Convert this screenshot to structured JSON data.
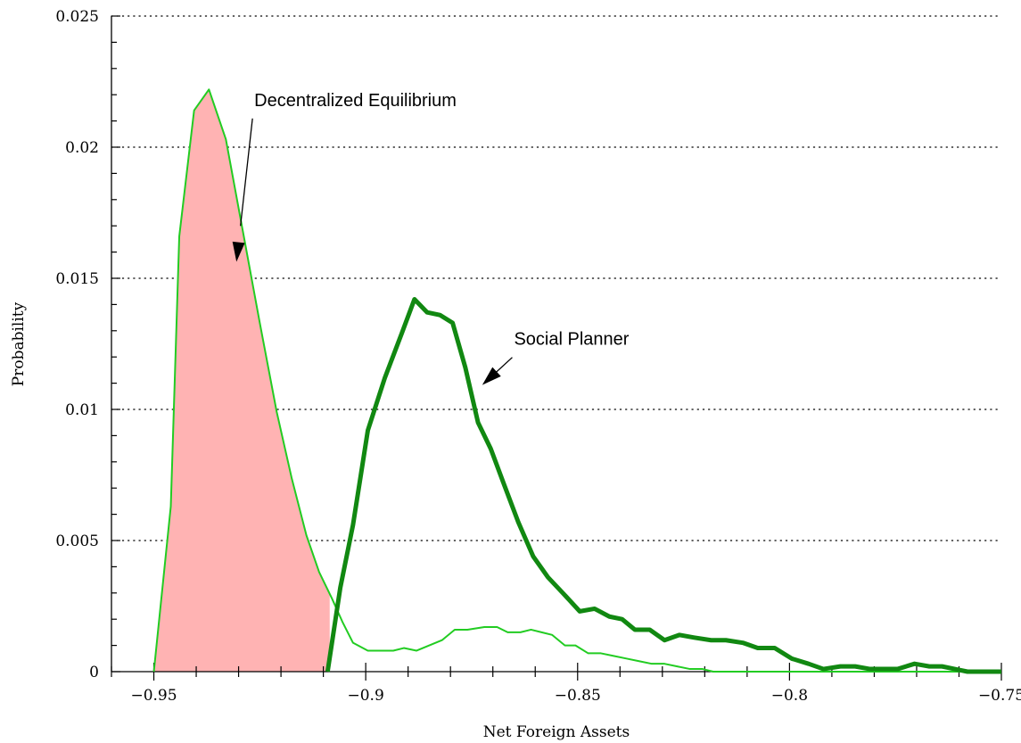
{
  "chart_data": {
    "type": "line",
    "title": "",
    "xlabel": "Net Foreign Assets",
    "ylabel": "Probability",
    "xlim": [
      -0.96,
      -0.75
    ],
    "ylim": [
      0,
      0.025
    ],
    "x_ticks": [
      -0.95,
      -0.9,
      -0.85,
      -0.8,
      -0.75
    ],
    "x_tick_labels": [
      "−0.95",
      "−0.9",
      "−0.85",
      "−0.8",
      "−0.75"
    ],
    "y_ticks": [
      0,
      0.005,
      0.01,
      0.015,
      0.02,
      0.025
    ],
    "y_tick_labels": [
      "0",
      "0.005",
      "0.01",
      "0.015",
      "0.02",
      "0.025"
    ],
    "grid": "horizontal-dotted",
    "legend": "none",
    "series": [
      {
        "color": "#22cc22",
        "x": [
          -0.95,
          -0.946,
          -0.944,
          -0.9405,
          -0.937,
          -0.933,
          -0.929,
          -0.925,
          -0.921,
          -0.9175,
          -0.914,
          -0.911,
          -0.908,
          -0.9055,
          -0.903,
          -0.8995,
          -0.896,
          -0.8935,
          -0.891,
          -0.888,
          -0.885,
          -0.882,
          -0.879,
          -0.876,
          -0.872,
          -0.869,
          -0.8665,
          -0.8635,
          -0.861,
          -0.8585,
          -0.856,
          -0.853,
          -0.8505,
          -0.8475,
          -0.8445,
          -0.8415,
          -0.8385,
          -0.8355,
          -0.8325,
          -0.8295,
          -0.8265,
          -0.8235,
          -0.8205,
          -0.818,
          -0.81,
          -0.8,
          -0.79,
          -0.78,
          -0.77,
          -0.76,
          -0.75
        ],
        "y": [
          0.0,
          0.0063,
          0.0166,
          0.0214,
          0.0222,
          0.0203,
          0.0168,
          0.0133,
          0.0099,
          0.0074,
          0.0052,
          0.0038,
          0.0028,
          0.0019,
          0.0011,
          0.0008,
          0.0008,
          0.0008,
          0.0009,
          0.0008,
          0.001,
          0.0012,
          0.0016,
          0.0016,
          0.0017,
          0.0017,
          0.0015,
          0.0015,
          0.0016,
          0.0015,
          0.0014,
          0.001,
          0.001,
          0.0007,
          0.0007,
          0.0006,
          0.0005,
          0.0004,
          0.0003,
          0.0003,
          0.0002,
          0.0001,
          0.0001,
          0.0,
          0.0,
          0.0,
          0.0,
          0.0,
          0.0,
          0.0,
          0.0
        ]
      },
      {
        "color": "#118811",
        "x": [
          -0.909,
          -0.906,
          -0.903,
          -0.8995,
          -0.8955,
          -0.8915,
          -0.8885,
          -0.8855,
          -0.8825,
          -0.8795,
          -0.8765,
          -0.8735,
          -0.8705,
          -0.8675,
          -0.864,
          -0.8605,
          -0.857,
          -0.8535,
          -0.8495,
          -0.846,
          -0.8425,
          -0.8395,
          -0.8365,
          -0.833,
          -0.8295,
          -0.826,
          -0.8225,
          -0.8185,
          -0.815,
          -0.811,
          -0.8075,
          -0.8035,
          -0.7995,
          -0.7955,
          -0.792,
          -0.788,
          -0.7845,
          -0.781,
          -0.778,
          -0.7745,
          -0.7705,
          -0.767,
          -0.764,
          -0.761,
          -0.758,
          -0.755,
          -0.752,
          -0.75
        ],
        "y": [
          0.0,
          0.0032,
          0.0056,
          0.0092,
          0.0112,
          0.0129,
          0.0142,
          0.0137,
          0.0136,
          0.0133,
          0.0116,
          0.0095,
          0.0085,
          0.0072,
          0.0057,
          0.0044,
          0.0036,
          0.003,
          0.0023,
          0.0024,
          0.0021,
          0.002,
          0.0016,
          0.0016,
          0.0012,
          0.0014,
          0.0013,
          0.0012,
          0.0012,
          0.0011,
          0.0009,
          0.0009,
          0.0005,
          0.0003,
          0.0001,
          0.0002,
          0.0002,
          0.0001,
          0.0001,
          0.0001,
          0.0003,
          0.0002,
          0.0002,
          0.0001,
          0.0,
          0.0,
          0.0,
          0.0
        ]
      }
    ],
    "shaded_region": {
      "series_index": 0,
      "x_from": -0.95,
      "x_to": -0.9085,
      "color": "#ffb3b3"
    },
    "annotations": [
      {
        "text": "Decentralized Equilibrium",
        "x": -0.9263,
        "y": 0.02157,
        "arrow_to": [
          -0.9305,
          0.01563
        ]
      },
      {
        "text": "Social Planner",
        "x": -0.865,
        "y": 0.01246,
        "arrow_to": [
          -0.8725,
          0.01093
        ]
      }
    ]
  }
}
